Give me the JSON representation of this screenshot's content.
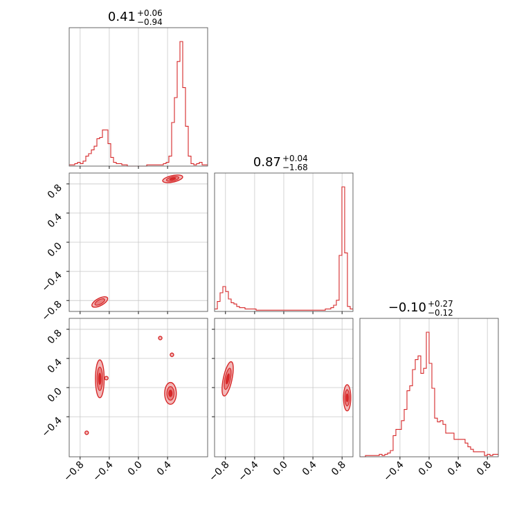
{
  "colors": {
    "accent": "#d62728",
    "fill_light": "#f2b8b8",
    "fill_mid": "#e88080",
    "grid": "#c8c8c8"
  },
  "chart_data": {
    "type": "corner",
    "parameters": [
      "p1",
      "p2",
      "p3"
    ],
    "titles": [
      {
        "value": "0.41",
        "plus": "+0.06",
        "minus": "−0.94"
      },
      {
        "value": "0.87",
        "plus": "+0.04",
        "minus": "−1.68"
      },
      {
        "value": "−0.10",
        "plus": "+0.27",
        "minus": "−0.12"
      }
    ],
    "ranges": [
      [
        -0.95,
        0.95
      ],
      [
        -0.95,
        0.95
      ],
      [
        -0.95,
        0.95
      ]
    ],
    "ticks": {
      "p1": [
        -0.8,
        -0.4,
        0.0,
        0.4
      ],
      "p2": [
        -0.8,
        -0.4,
        0.0,
        0.4,
        0.8
      ],
      "p2_row": [
        -0.8,
        -0.4,
        0.0,
        0.4,
        0.8
      ],
      "p3_row": [
        -0.4,
        0.0,
        0.4,
        0.8
      ],
      "p3_col": [
        -0.4,
        0.0,
        0.4,
        0.8
      ]
    },
    "tick_labels": {
      "p1": [
        "−0.8",
        "−0.4",
        "0.0",
        "0.4"
      ],
      "p2": [
        "−0.8",
        "−0.4",
        "0.0",
        "0.4",
        "0.8"
      ],
      "p2_row": [
        "−0.8",
        "−0.4",
        "0.0",
        "0.4",
        "0.8"
      ],
      "p3_row": [
        "−0.4",
        "0.0",
        "0.4",
        "0.8"
      ],
      "p3_col": [
        "−0.4",
        "0.0",
        "0.4",
        "0.8"
      ]
    },
    "histograms": [
      {
        "param": "p1",
        "bin_start": -0.95,
        "bin_width": 0.038,
        "counts": [
          0.01,
          0.01,
          0.02,
          0.03,
          0.02,
          0.04,
          0.08,
          0.1,
          0.13,
          0.16,
          0.22,
          0.23,
          0.29,
          0.29,
          0.18,
          0.07,
          0.03,
          0.02,
          0.02,
          0.01,
          0.01,
          0,
          0,
          0,
          0,
          0,
          0,
          0,
          0.01,
          0.01,
          0.01,
          0.01,
          0.01,
          0.01,
          0.02,
          0.03,
          0.08,
          0.35,
          0.55,
          0.84,
          1.0,
          0.63,
          0.32,
          0.08,
          0.02,
          0.01,
          0.02,
          0.03,
          0.01,
          0.01
        ]
      },
      {
        "param": "p2",
        "bin_start": -0.95,
        "bin_width": 0.038,
        "counts": [
          0.02,
          0.08,
          0.15,
          0.2,
          0.16,
          0.1,
          0.07,
          0.06,
          0.04,
          0.03,
          0.03,
          0.02,
          0.02,
          0.02,
          0.02,
          0.01,
          0.01,
          0.01,
          0.01,
          0.01,
          0.01,
          0.01,
          0.01,
          0.01,
          0.01,
          0.01,
          0.01,
          0.01,
          0.01,
          0.01,
          0.01,
          0.01,
          0.01,
          0.01,
          0.01,
          0.01,
          0.01,
          0.01,
          0.01,
          0.01,
          0.02,
          0.02,
          0.03,
          0.05,
          0.09,
          0.45,
          1.0,
          0.47,
          0.04,
          0.02
        ]
      },
      {
        "param": "p3",
        "bin_start": -0.95,
        "bin_width": 0.038,
        "counts": [
          0,
          0,
          0.01,
          0.01,
          0.01,
          0.01,
          0.01,
          0.02,
          0.01,
          0.02,
          0.03,
          0.05,
          0.17,
          0.22,
          0.22,
          0.29,
          0.38,
          0.53,
          0.57,
          0.7,
          0.78,
          0.81,
          0.67,
          0.71,
          1.0,
          0.75,
          0.55,
          0.31,
          0.28,
          0.29,
          0.26,
          0.19,
          0.19,
          0.19,
          0.14,
          0.14,
          0.14,
          0.14,
          0.11,
          0.08,
          0.06,
          0.04,
          0.04,
          0.04,
          0.04,
          0.01,
          0.02,
          0.01,
          0.02,
          0.02
        ]
      }
    ],
    "contours": [
      {
        "x": "p1",
        "y": "p2",
        "regions": [
          {
            "center": [
              0.47,
              0.87
            ],
            "radii": [
              0.14,
              0.045
            ],
            "angle": -12,
            "level": 3
          },
          {
            "center": [
              -0.53,
              -0.82
            ],
            "radii": [
              0.12,
              0.05
            ],
            "angle": -28,
            "level": 2
          }
        ]
      },
      {
        "x": "p1",
        "y": "p3",
        "regions": [
          {
            "center": [
              -0.53,
              0.12
            ],
            "radii": [
              0.06,
              0.26
            ],
            "angle": 0,
            "level": 3
          },
          {
            "center": [
              0.44,
              -0.08
            ],
            "radii": [
              0.08,
              0.15
            ],
            "angle": 0,
            "level": 3
          },
          {
            "center": [
              0.3,
              0.68
            ],
            "radii": [
              0.01,
              0.01
            ],
            "angle": 0,
            "level": 1
          },
          {
            "center": [
              0.46,
              0.45
            ],
            "radii": [
              0.01,
              0.01
            ],
            "angle": 0,
            "level": 1
          },
          {
            "center": [
              -0.71,
              -0.62
            ],
            "radii": [
              0.01,
              0.01
            ],
            "angle": 0,
            "level": 1
          },
          {
            "center": [
              -0.44,
              0.13
            ],
            "radii": [
              0.01,
              0.01
            ],
            "angle": 0,
            "level": 1
          }
        ]
      },
      {
        "x": "p2",
        "y": "p3",
        "regions": [
          {
            "center": [
              -0.77,
              0.12
            ],
            "radii": [
              0.06,
              0.24
            ],
            "angle": 12,
            "level": 3
          },
          {
            "center": [
              0.87,
              -0.14
            ],
            "radii": [
              0.05,
              0.18
            ],
            "angle": 0,
            "level": 3
          }
        ]
      }
    ],
    "grid": true,
    "legend": "none"
  }
}
